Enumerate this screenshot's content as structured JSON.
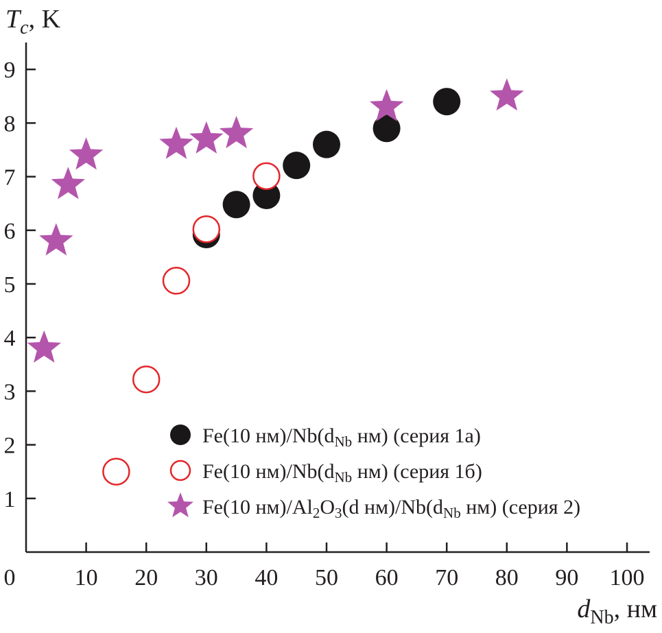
{
  "chart_data": {
    "type": "scatter",
    "title": "",
    "xlabel": {
      "main": "d",
      "sub": "Nb",
      "unit": ", нм"
    },
    "ylabel": {
      "main": "T",
      "sub": "c",
      "unit": ", K"
    },
    "xlim": [
      0,
      105
    ],
    "ylim": [
      0,
      9.9
    ],
    "x_ticks": [
      0,
      10,
      20,
      30,
      40,
      50,
      60,
      70,
      80,
      90,
      100
    ],
    "y_ticks": [
      1,
      2,
      3,
      4,
      5,
      6,
      7,
      8,
      9
    ],
    "grid": false,
    "legend_position": "bottom-right",
    "series": [
      {
        "id": "s1a",
        "marker": "filled-circle",
        "color": "#1a1718",
        "legend": {
          "prefix": "Fe(10 нм)/Nb(d",
          "sub": "Nb",
          "suffix": " нм) (серия 1а)"
        },
        "points": [
          [
            30,
            5.92
          ],
          [
            35,
            6.48
          ],
          [
            40,
            6.65
          ],
          [
            45,
            7.21
          ],
          [
            50,
            7.6
          ],
          [
            60,
            7.9
          ],
          [
            70,
            8.4
          ]
        ]
      },
      {
        "id": "s1b",
        "marker": "open-circle",
        "color": "#e3262a",
        "legend": {
          "prefix": "Fe(10 нм)/Nb(d",
          "sub": "Nb",
          "suffix": " нм) (серия 1б)"
        },
        "points": [
          [
            15,
            1.5
          ],
          [
            20,
            3.22
          ],
          [
            25,
            5.06
          ],
          [
            30,
            6.02
          ],
          [
            40,
            7.01
          ]
        ]
      },
      {
        "id": "s2",
        "marker": "star",
        "color": "#b455ac",
        "legend": {
          "prefix": "Fe(10 нм)/Al",
          "sub": "2",
          "mid": "O",
          "sub2": "3",
          "suffix": "(d нм)/Nb(d",
          "sub3": "Nb",
          "suffix2": " нм) (серия 2)"
        },
        "points": [
          [
            3,
            3.8
          ],
          [
            5,
            5.8
          ],
          [
            7,
            6.85
          ],
          [
            10,
            7.4
          ],
          [
            25,
            7.6
          ],
          [
            30,
            7.7
          ],
          [
            35,
            7.8
          ],
          [
            60,
            8.3
          ],
          [
            80,
            8.5
          ]
        ]
      }
    ]
  }
}
